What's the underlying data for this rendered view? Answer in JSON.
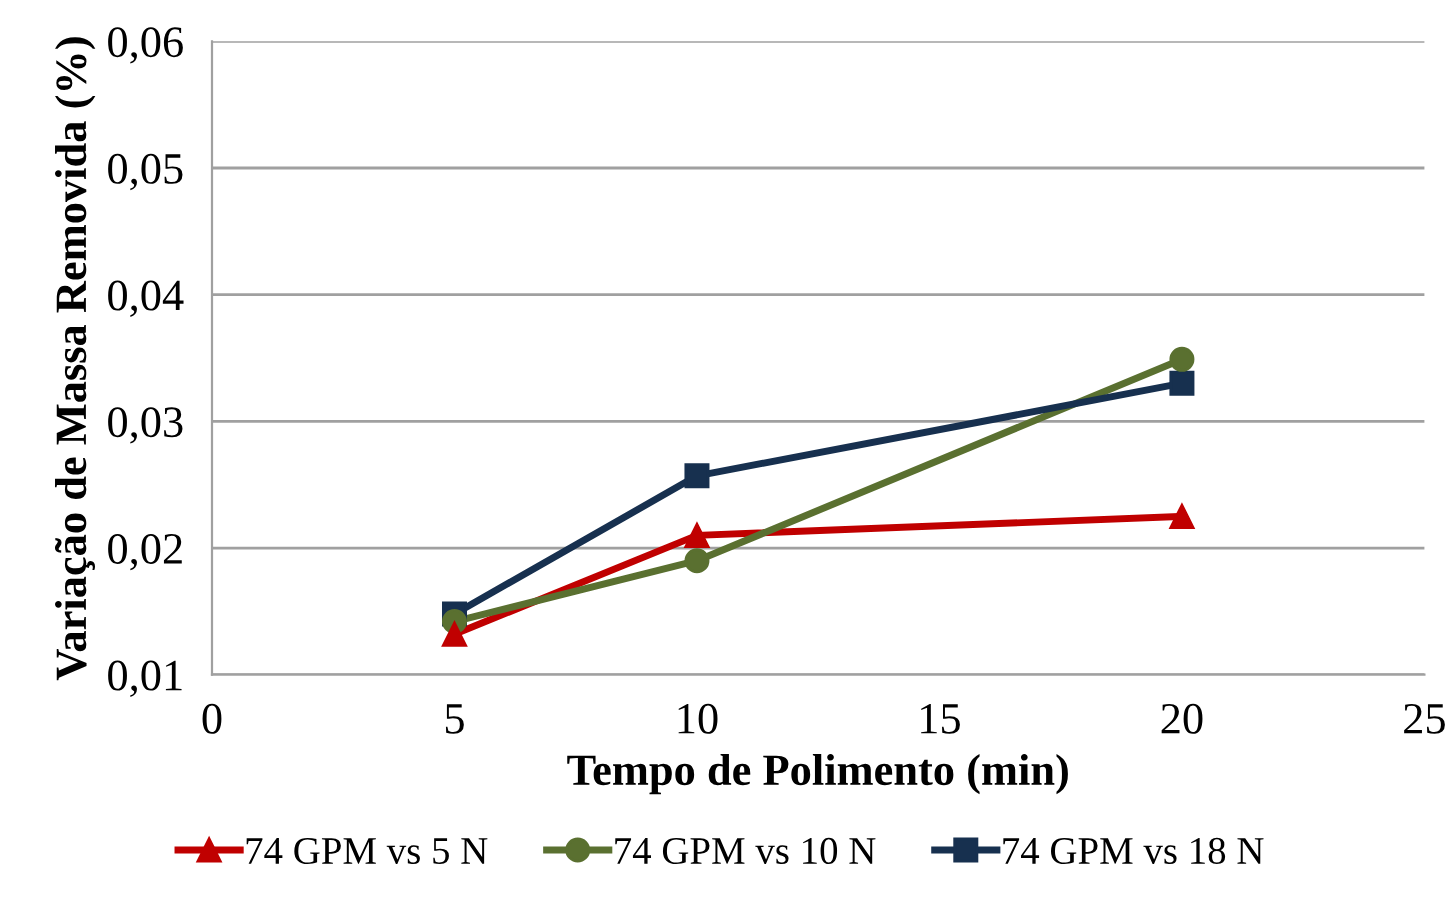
{
  "chart_data": {
    "type": "line",
    "xlabel": "Tempo de Polimento (min)",
    "ylabel": "Variação de Massa Removida (%)",
    "xlim": [
      0,
      25
    ],
    "xticks": [
      {
        "value": 0,
        "label": "0"
      },
      {
        "value": 5,
        "label": "5"
      },
      {
        "value": 10,
        "label": "10"
      },
      {
        "value": 15,
        "label": "15"
      },
      {
        "value": 20,
        "label": "20"
      },
      {
        "value": 25,
        "label": "25"
      }
    ],
    "ylim": [
      0.01,
      0.06
    ],
    "yticks": [
      {
        "value": 0.01,
        "label": "0,01"
      },
      {
        "value": 0.02,
        "label": "0,02"
      },
      {
        "value": 0.03,
        "label": "0,03"
      },
      {
        "value": 0.04,
        "label": "0,04"
      },
      {
        "value": 0.05,
        "label": "0,05"
      },
      {
        "value": 0.06,
        "label": "0,06"
      }
    ],
    "grid": "y",
    "legend": "bottom",
    "x": [
      5,
      10,
      20
    ],
    "series": [
      {
        "name": "74 GPM vs 5 N",
        "color": "#c00000",
        "marker": "triangle",
        "values": [
          0.0132,
          0.021,
          0.0225
        ]
      },
      {
        "name": "74 GPM vs 10 N",
        "color": "#5a7030",
        "marker": "circle",
        "values": [
          0.0142,
          0.019,
          0.0349
        ]
      },
      {
        "name": "74 GPM vs 18 N",
        "color": "#17304f",
        "marker": "square",
        "values": [
          0.0148,
          0.0257,
          0.033
        ]
      }
    ]
  }
}
